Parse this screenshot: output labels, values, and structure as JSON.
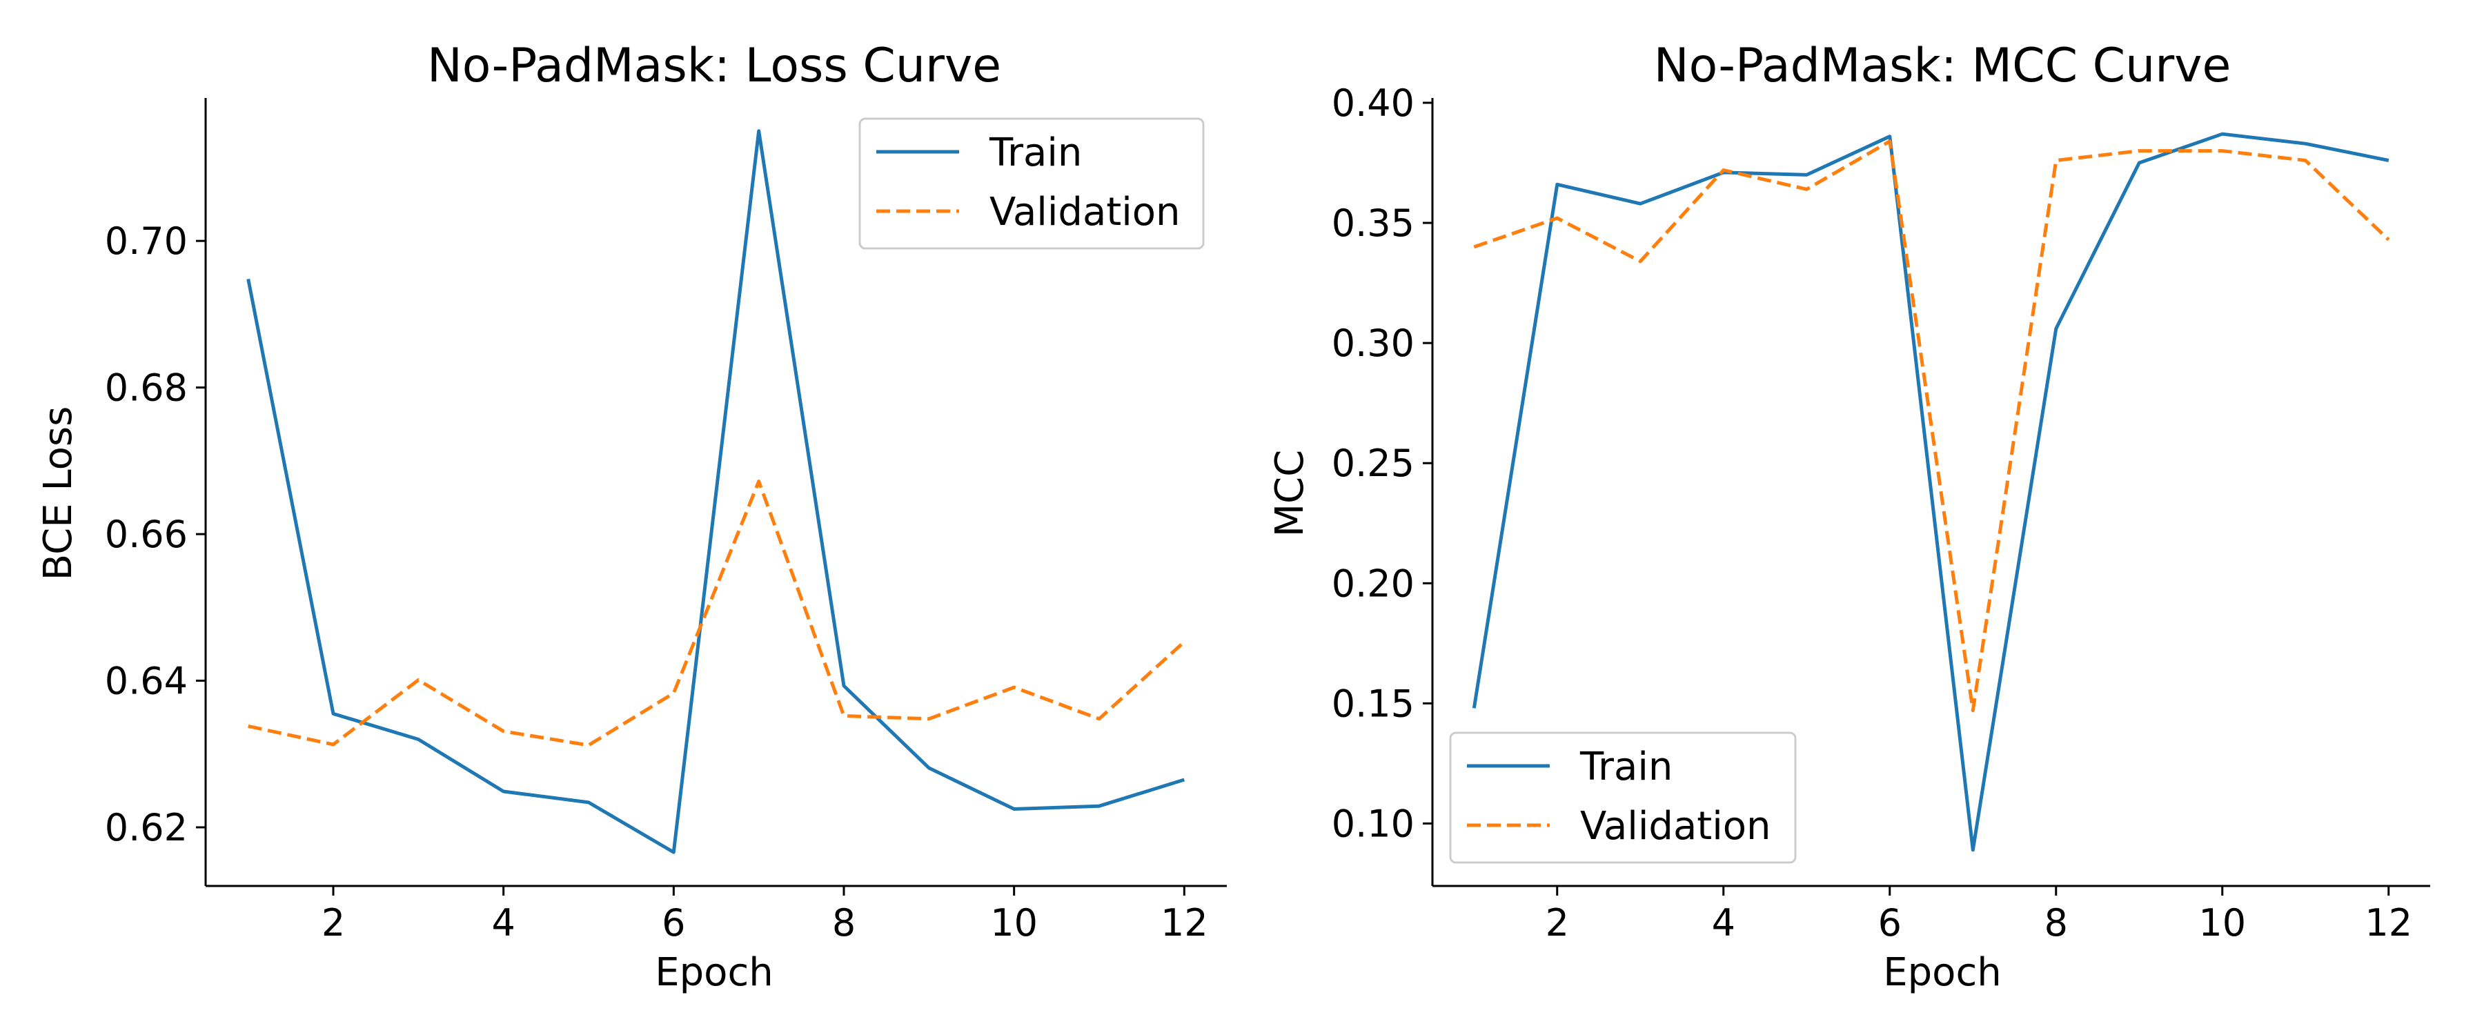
{
  "colors": {
    "train": "#1f77b4",
    "validation": "#ff7f0e"
  },
  "chart_data": [
    {
      "type": "line",
      "title": "No-PadMask: Loss Curve",
      "xlabel": "Epoch",
      "ylabel": "BCE Loss",
      "x": [
        1,
        2,
        3,
        4,
        5,
        6,
        7,
        8,
        9,
        10,
        11,
        12
      ],
      "xlim": [
        0.5,
        12.5
      ],
      "xticks": [
        2,
        4,
        6,
        8,
        10,
        12
      ],
      "xtick_labels": [
        "2",
        "4",
        "6",
        "8",
        "10",
        "12"
      ],
      "ylim": [
        0.612,
        0.7195
      ],
      "yticks": [
        0.62,
        0.64,
        0.66,
        0.68,
        0.7
      ],
      "ytick_labels": [
        "0.62",
        "0.64",
        "0.66",
        "0.68",
        "0.70"
      ],
      "grid": false,
      "legend": "upper-right",
      "series": [
        {
          "name": "Train",
          "style": "solid",
          "color_key": "train",
          "values": [
            0.6948,
            0.6355,
            0.632,
            0.6249,
            0.6234,
            0.6166,
            0.715,
            0.6393,
            0.6281,
            0.6225,
            0.6229,
            0.6265
          ]
        },
        {
          "name": "Validation",
          "style": "dashed",
          "color_key": "validation",
          "values": [
            0.6338,
            0.6313,
            0.6401,
            0.6331,
            0.6312,
            0.6383,
            0.6672,
            0.6352,
            0.6348,
            0.6391,
            0.6348,
            0.6453
          ]
        }
      ]
    },
    {
      "type": "line",
      "title": "No-PadMask: MCC Curve",
      "xlabel": "Epoch",
      "ylabel": "MCC",
      "x": [
        1,
        2,
        3,
        4,
        5,
        6,
        7,
        8,
        9,
        10,
        11,
        12
      ],
      "xlim": [
        0.5,
        12.5
      ],
      "xticks": [
        2,
        4,
        6,
        8,
        10,
        12
      ],
      "xtick_labels": [
        "2",
        "4",
        "6",
        "8",
        "10",
        "12"
      ],
      "ylim": [
        0.074,
        0.402
      ],
      "yticks": [
        0.1,
        0.15,
        0.2,
        0.25,
        0.3,
        0.35,
        0.4
      ],
      "ytick_labels": [
        "0.10",
        "0.15",
        "0.20",
        "0.25",
        "0.30",
        "0.35",
        "0.40"
      ],
      "grid": false,
      "legend": "lower-left",
      "series": [
        {
          "name": "Train",
          "style": "solid",
          "color_key": "train",
          "values": [
            0.148,
            0.366,
            0.358,
            0.371,
            0.37,
            0.386,
            0.089,
            0.306,
            0.375,
            0.387,
            0.383,
            0.376
          ]
        },
        {
          "name": "Validation",
          "style": "dashed",
          "color_key": "validation",
          "values": [
            0.34,
            0.352,
            0.334,
            0.372,
            0.364,
            0.384,
            0.147,
            0.376,
            0.38,
            0.38,
            0.376,
            0.343
          ]
        }
      ]
    }
  ]
}
